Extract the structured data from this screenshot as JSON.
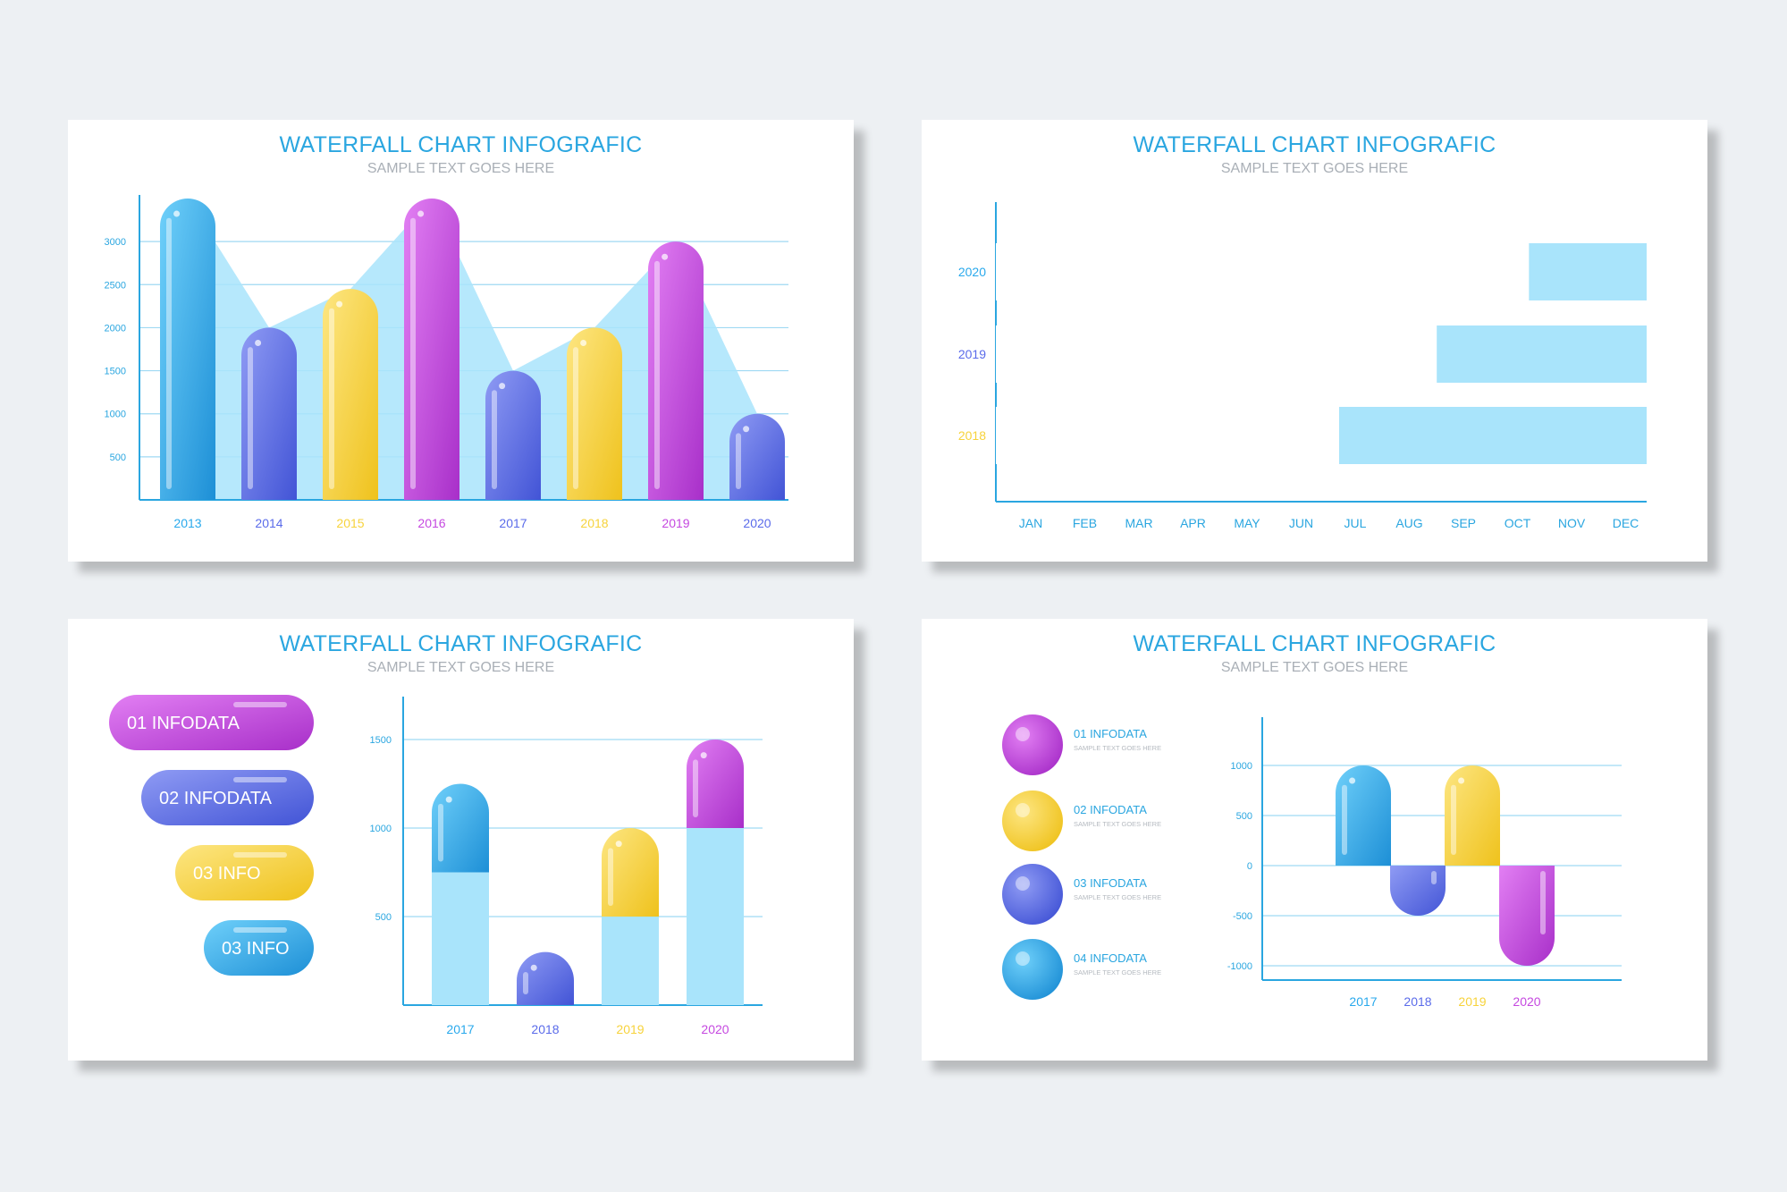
{
  "colors": {
    "cyan": "#29a9ec",
    "blue": "#5a6bea",
    "yellow": "#f7d33c",
    "magenta": "#c548e0",
    "light": "#a9e4fb",
    "axis": "#2aa6e0",
    "grid": "#9fd9f3",
    "label": "#2aa6e0"
  },
  "chart_data": [
    {
      "type": "bar",
      "title": "WATERFALL CHART INFOGRAFIC",
      "subtitle": "SAMPLE TEXT GOES HERE",
      "categories": [
        "2013",
        "2014",
        "2015",
        "2016",
        "2017",
        "2018",
        "2019",
        "2020"
      ],
      "values": [
        3500,
        2000,
        2450,
        3500,
        1500,
        2000,
        3000,
        1000
      ],
      "colors": [
        "cyan",
        "blue",
        "yellow",
        "magenta",
        "blue",
        "yellow",
        "magenta",
        "blue"
      ],
      "yticks": [
        500,
        1000,
        1500,
        2000,
        2500,
        3000
      ],
      "ylim": [
        0,
        3500
      ],
      "grid": true
    },
    {
      "type": "bar",
      "orientation": "horizontal",
      "title": "WATERFALL CHART INFOGRAFIC",
      "subtitle": "SAMPLE TEXT GOES HERE",
      "categories": [
        "2020",
        "2019",
        "2018"
      ],
      "values": [
        9.5,
        7.8,
        6
      ],
      "totals": [
        12,
        12,
        12
      ],
      "colors": [
        "cyan",
        "blue",
        "yellow"
      ],
      "xticks": [
        "JAN",
        "FEB",
        "MAR",
        "APR",
        "MAY",
        "JUN",
        "JUL",
        "AUG",
        "SEP",
        "OCT",
        "NOV",
        "DEC"
      ]
    },
    {
      "type": "bar",
      "stacked": true,
      "title": "WATERFALL CHART INFOGRAFIC",
      "subtitle": "SAMPLE TEXT GOES HERE",
      "categories": [
        "2017",
        "2018",
        "2019",
        "2020"
      ],
      "base": [
        750,
        0,
        500,
        1000
      ],
      "values": [
        500,
        300,
        500,
        500
      ],
      "colors": [
        "cyan",
        "blue",
        "yellow",
        "magenta"
      ],
      "yticks": [
        500,
        1000,
        1500
      ],
      "ylim": [
        0,
        1500
      ],
      "legend": [
        {
          "num": "01",
          "text": "INFODATA",
          "color": "magenta"
        },
        {
          "num": "02",
          "text": "INFODATA",
          "color": "blue"
        },
        {
          "num": "03",
          "text": "INFO",
          "color": "yellow"
        },
        {
          "num": "03",
          "text": "INFO",
          "color": "cyan"
        }
      ]
    },
    {
      "type": "bar",
      "waterfall": true,
      "title": "WATERFALL CHART INFOGRAFIC",
      "subtitle": "SAMPLE TEXT GOES HERE",
      "categories": [
        "2017",
        "2018",
        "2019",
        "2020"
      ],
      "bars": [
        {
          "from": 0,
          "to": 1000,
          "color": "cyan"
        },
        {
          "from": 0,
          "to": -500,
          "color": "blue"
        },
        {
          "from": 0,
          "to": 1000,
          "color": "yellow"
        },
        {
          "from": 0,
          "to": -1000,
          "color": "magenta"
        }
      ],
      "yticks": [
        1000,
        500,
        0,
        -500,
        -1000
      ],
      "ylim": [
        -1000,
        1000
      ],
      "legend": [
        {
          "title": "01 INFODATA",
          "sub": "SAMPLE TEXT GOES HERE",
          "color": "magenta"
        },
        {
          "title": "02 INFODATA",
          "sub": "SAMPLE TEXT GOES HERE",
          "color": "yellow"
        },
        {
          "title": "03 INFODATA",
          "sub": "SAMPLE TEXT GOES HERE",
          "color": "blue"
        },
        {
          "title": "04 INFODATA",
          "sub": "SAMPLE TEXT GOES HERE",
          "color": "cyan"
        }
      ]
    }
  ]
}
